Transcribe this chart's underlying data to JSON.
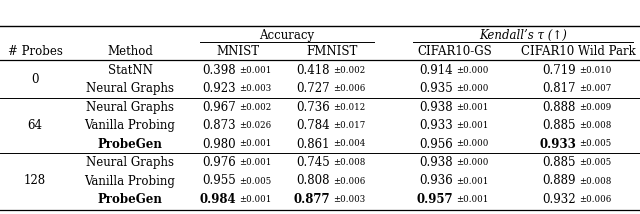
{
  "title_accuracy": "Accuracy",
  "title_kendall": "Kendall’s τ (↑)",
  "col_headers": [
    "# Probes",
    "Method",
    "MNIST",
    "FMNIST",
    "CIFAR10-GS",
    "CIFAR10 Wild Park"
  ],
  "rows": [
    {
      "probes": "0",
      "method": "StatNN",
      "mnist": "0.398",
      "mnist_err": "±0.001",
      "fmnist": "0.418",
      "fmnist_err": "±0.002",
      "cifar_gs": "0.914",
      "cifar_gs_err": "±0.000",
      "cifar_wp": "0.719",
      "cifar_wp_err": "±0.010",
      "bold_mnist": false,
      "bold_fmnist": false,
      "bold_cifar_gs": false,
      "bold_cifar_wp": false,
      "bold_method": false
    },
    {
      "probes": "",
      "method": "Neural Graphs",
      "mnist": "0.923",
      "mnist_err": "±0.003",
      "fmnist": "0.727",
      "fmnist_err": "±0.006",
      "cifar_gs": "0.935",
      "cifar_gs_err": "±0.000",
      "cifar_wp": "0.817",
      "cifar_wp_err": "±0.007",
      "bold_mnist": false,
      "bold_fmnist": false,
      "bold_cifar_gs": false,
      "bold_cifar_wp": false,
      "bold_method": false
    },
    {
      "probes": "64",
      "method": "Neural Graphs",
      "mnist": "0.967",
      "mnist_err": "±0.002",
      "fmnist": "0.736",
      "fmnist_err": "±0.012",
      "cifar_gs": "0.938",
      "cifar_gs_err": "±0.001",
      "cifar_wp": "0.888",
      "cifar_wp_err": "±0.009",
      "bold_mnist": false,
      "bold_fmnist": false,
      "bold_cifar_gs": false,
      "bold_cifar_wp": false,
      "bold_method": false
    },
    {
      "probes": "",
      "method": "Vanilla Probing",
      "mnist": "0.873",
      "mnist_err": "±0.026",
      "fmnist": "0.784",
      "fmnist_err": "±0.017",
      "cifar_gs": "0.933",
      "cifar_gs_err": "±0.001",
      "cifar_wp": "0.885",
      "cifar_wp_err": "±0.008",
      "bold_mnist": false,
      "bold_fmnist": false,
      "bold_cifar_gs": false,
      "bold_cifar_wp": false,
      "bold_method": false
    },
    {
      "probes": "",
      "method": "ProbeGen",
      "mnist": "0.980",
      "mnist_err": "±0.001",
      "fmnist": "0.861",
      "fmnist_err": "±0.004",
      "cifar_gs": "0.956",
      "cifar_gs_err": "±0.000",
      "cifar_wp": "0.933",
      "cifar_wp_err": "±0.005",
      "bold_mnist": false,
      "bold_fmnist": false,
      "bold_cifar_gs": false,
      "bold_cifar_wp": true,
      "bold_method": true
    },
    {
      "probes": "128",
      "method": "Neural Graphs",
      "mnist": "0.976",
      "mnist_err": "±0.001",
      "fmnist": "0.745",
      "fmnist_err": "±0.008",
      "cifar_gs": "0.938",
      "cifar_gs_err": "±0.000",
      "cifar_wp": "0.885",
      "cifar_wp_err": "±0.005",
      "bold_mnist": false,
      "bold_fmnist": false,
      "bold_cifar_gs": false,
      "bold_cifar_wp": false,
      "bold_method": false
    },
    {
      "probes": "",
      "method": "Vanilla Probing",
      "mnist": "0.955",
      "mnist_err": "±0.005",
      "fmnist": "0.808",
      "fmnist_err": "±0.006",
      "cifar_gs": "0.936",
      "cifar_gs_err": "±0.001",
      "cifar_wp": "0.889",
      "cifar_wp_err": "±0.008",
      "bold_mnist": false,
      "bold_fmnist": false,
      "bold_cifar_gs": false,
      "bold_cifar_wp": false,
      "bold_method": false
    },
    {
      "probes": "",
      "method": "ProbeGen",
      "mnist": "0.984",
      "mnist_err": "±0.001",
      "fmnist": "0.877",
      "fmnist_err": "±0.003",
      "cifar_gs": "0.957",
      "cifar_gs_err": "±0.001",
      "cifar_wp": "0.932",
      "cifar_wp_err": "±0.006",
      "bold_mnist": true,
      "bold_fmnist": true,
      "bold_cifar_gs": true,
      "bold_cifar_wp": false,
      "bold_method": true
    }
  ],
  "groups": [
    {
      "label": "0",
      "start": 0,
      "end": 1
    },
    {
      "label": "64",
      "start": 2,
      "end": 4
    },
    {
      "label": "128",
      "start": 5,
      "end": 7
    }
  ],
  "sep_after_rows": [
    1,
    4
  ],
  "background_color": "#ffffff",
  "font_size_main": 8.5,
  "font_size_err": 6.2
}
